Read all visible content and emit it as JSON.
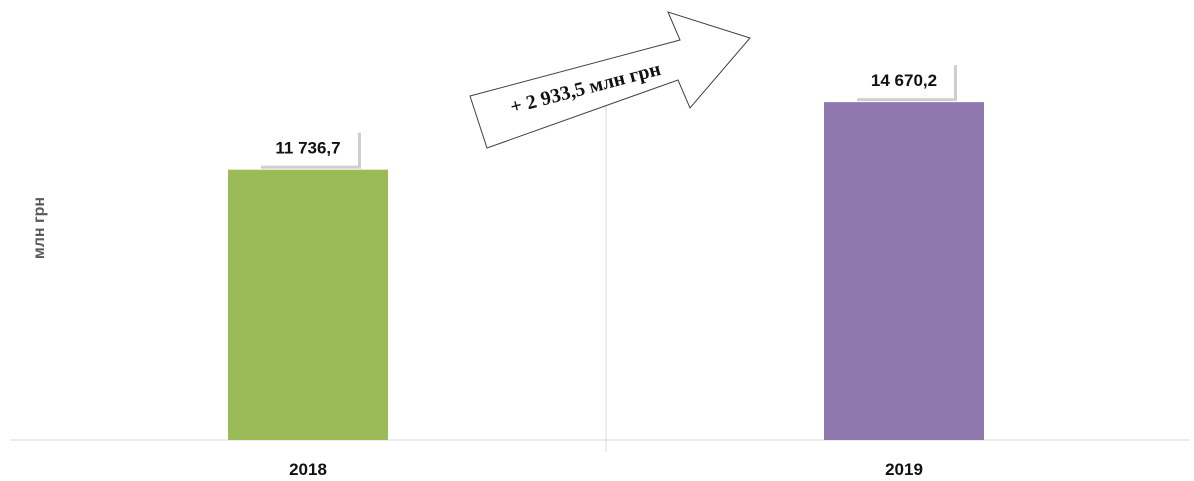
{
  "chart_data": {
    "type": "bar",
    "categories": [
      "2018",
      "2019"
    ],
    "values": [
      11736.7,
      14670.2
    ],
    "value_labels": [
      "11 736,7",
      "14 670,2"
    ],
    "colors": [
      "#9bbb59",
      "#8e78ad"
    ],
    "title": "",
    "xlabel": "",
    "ylabel": "млн грн",
    "ylim": [
      0,
      16500
    ],
    "grid": false,
    "annotation": "+ 2 933,5 млн грн"
  }
}
